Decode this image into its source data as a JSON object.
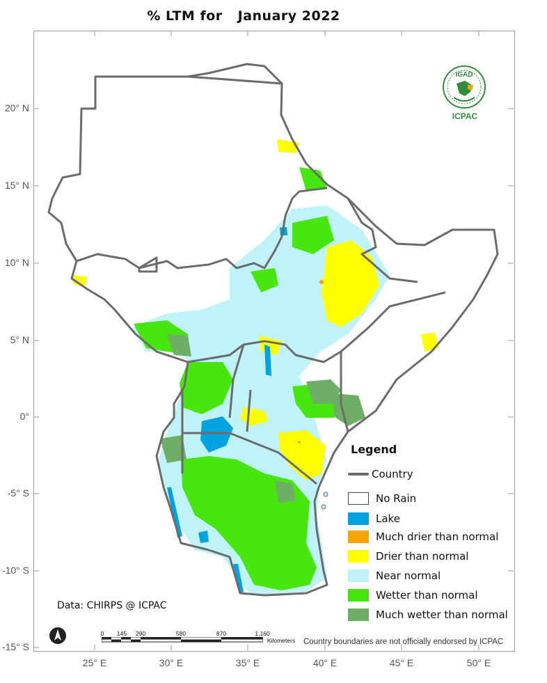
{
  "title": {
    "part1": "% LTM  for",
    "part2": "January 2022"
  },
  "latitude_labels": [
    "20° N",
    "15° N",
    "10° N",
    "5° N",
    "0°",
    "-5° S",
    "-10° S",
    "-15° S"
  ],
  "longitude_labels": [
    "25° E",
    "30° E",
    "35° E",
    "40° E",
    "45° E",
    "50° E"
  ],
  "legend": {
    "title": "Legend",
    "items": [
      {
        "label": "Country",
        "kind": "line",
        "color": "#6b6b6b"
      },
      {
        "label": "No Rain",
        "kind": "box",
        "color": "#ffffff"
      },
      {
        "label": "Lake",
        "kind": "box",
        "color": "#00a3e0"
      },
      {
        "label": "Much drier than normal",
        "kind": "box",
        "color": "#f7a400"
      },
      {
        "label": "Drier than normal",
        "kind": "box",
        "color": "#ffff00"
      },
      {
        "label": "Near normal",
        "kind": "box",
        "color": "#bff3f7"
      },
      {
        "label": "Wetter than normal",
        "kind": "box",
        "color": "#47e60f"
      },
      {
        "label": "Much wetter than normal",
        "kind": "box",
        "color": "#6fae66"
      }
    ]
  },
  "data_source": "Data: CHIRPS @ ICPAC",
  "disclaimer": "Country boundaries are not officially endorsed by ICPAC",
  "logo": {
    "top_text": "IGAD",
    "bottom_text": "ICPAC"
  },
  "scale_bar": {
    "ticks": [
      "0",
      "145",
      "290",
      "580",
      "870",
      "1,160"
    ],
    "unit": "Kilometers"
  }
}
